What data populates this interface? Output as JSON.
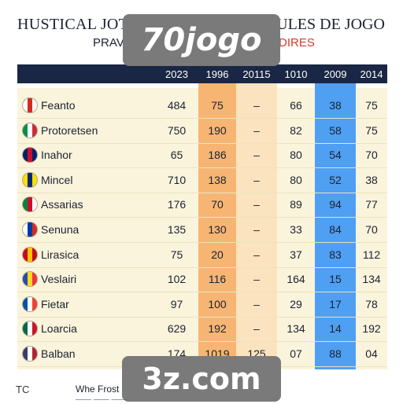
{
  "title_left": "HUSTICAL JOT",
  "title_right": "PULES DE JOGO",
  "subtitle_left": "PRAV",
  "subtitle_right": "DIRES",
  "watermark_top": "70jogo",
  "watermark_bottom": "3z.com",
  "columns": [
    "2023",
    "1996",
    "20115",
    "1010",
    "2009",
    "2014"
  ],
  "rows": [
    {
      "name": "Feanto",
      "values": [
        "484",
        "75",
        "–",
        "66",
        "38",
        "75"
      ]
    },
    {
      "name": "Protoretsen",
      "values": [
        "750",
        "190",
        "–",
        "82",
        "58",
        "75"
      ]
    },
    {
      "name": "Inahor",
      "values": [
        "65",
        "186",
        "–",
        "80",
        "54",
        "70"
      ]
    },
    {
      "name": "Mincel",
      "values": [
        "710",
        "138",
        "–",
        "80",
        "52",
        "38"
      ]
    },
    {
      "name": "Assarias",
      "values": [
        "176",
        "70",
        "–",
        "89",
        "94",
        "77"
      ]
    },
    {
      "name": "Senuna",
      "values": [
        "135",
        "130",
        "–",
        "33",
        "84",
        "70"
      ]
    },
    {
      "name": "Lirasica",
      "values": [
        "75",
        "20",
        "–",
        "37",
        "83",
        "112"
      ]
    },
    {
      "name": "Veslairi",
      "values": [
        "102",
        "116",
        "–",
        "164",
        "15",
        "134"
      ]
    },
    {
      "name": "Fietar",
      "values": [
        "97",
        "100",
        "–",
        "29",
        "17",
        "78"
      ]
    },
    {
      "name": "Loarcia",
      "values": [
        "629",
        "192",
        "–",
        "134",
        "14",
        "192"
      ]
    },
    {
      "name": "Balban",
      "values": [
        "174",
        "1019",
        "125",
        "07",
        "88",
        "04"
      ]
    }
  ],
  "flags": [
    {
      "icon": "england-flag-icon",
      "colors": [
        "#ffffff",
        "#d52b1e",
        "#ffffff"
      ]
    },
    {
      "icon": "italy-flag-icon",
      "colors": [
        "#009246",
        "#ffffff",
        "#ce2b37"
      ]
    },
    {
      "icon": "uk-flag-icon",
      "colors": [
        "#012169",
        "#c8102e",
        "#012169"
      ]
    },
    {
      "icon": "brazil-flag-icon",
      "colors": [
        "#ffdf00",
        "#002776",
        "#ffdf00"
      ]
    },
    {
      "icon": "wales-flag-icon",
      "colors": [
        "#00843d",
        "#d00c27",
        "#ffffff"
      ]
    },
    {
      "icon": "russia-flag-icon",
      "colors": [
        "#ffffff",
        "#0039a6",
        "#d52b1e"
      ]
    },
    {
      "icon": "spain-flag-icon",
      "colors": [
        "#c60b1e",
        "#ffc400",
        "#c60b1e"
      ]
    },
    {
      "icon": "belgium-flag-icon",
      "colors": [
        "#2a4ca8",
        "#fdda24",
        "#ef3340"
      ]
    },
    {
      "icon": "france-flag-icon",
      "colors": [
        "#0055a4",
        "#ffffff",
        "#ef4135"
      ]
    },
    {
      "icon": "mexico-flag-icon",
      "colors": [
        "#006847",
        "#ffffff",
        "#ce1126"
      ]
    },
    {
      "icon": "usa-flag-icon",
      "colors": [
        "#3c3b6e",
        "#ffffff",
        "#b22234"
      ]
    }
  ],
  "footer_left": "TC",
  "footer_text": "Whe Frost",
  "footer_sub": "—— —— ——"
}
